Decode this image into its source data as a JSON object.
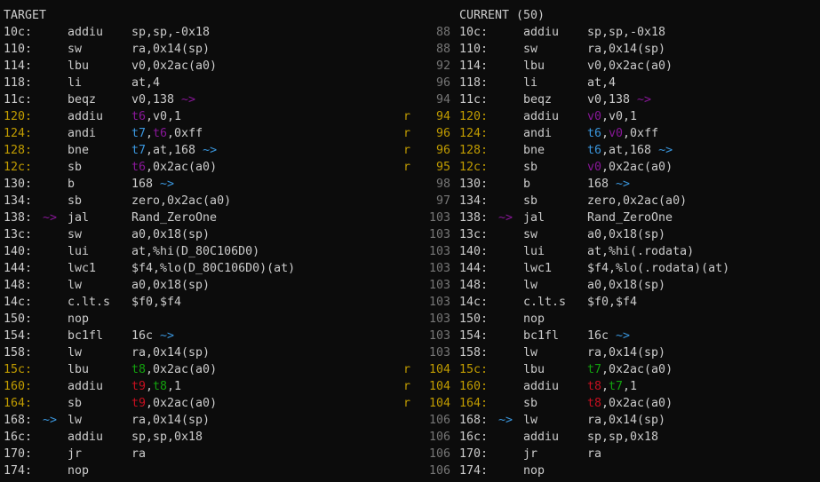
{
  "colors": {
    "d": "#cccccc",
    "y": "#c19c00",
    "p": "#881798",
    "b": "#3a96dd",
    "g": "#13a10e",
    "r": "#c50f1f",
    "n": "#767676",
    "bg": "#0c0c0c"
  },
  "header": {
    "left": "TARGET",
    "right": "CURRENT (50)"
  },
  "rows": [
    {
      "la": "10c:",
      "lac": "d",
      "lar": null,
      "lm": "addiu",
      "lx": [
        [
          "sp,sp,-0x18",
          "d"
        ]
      ],
      "mk": "",
      "rn": "88",
      "ra": "10c:",
      "rac": "d",
      "rar": null,
      "rm": "addiu",
      "rx": [
        [
          "sp,sp,-0x18",
          "d"
        ]
      ]
    },
    {
      "la": "110:",
      "lac": "d",
      "lar": null,
      "lm": "sw",
      "lx": [
        [
          "ra,0x14(sp)",
          "d"
        ]
      ],
      "mk": "",
      "rn": "88",
      "ra": "110:",
      "rac": "d",
      "rar": null,
      "rm": "sw",
      "rx": [
        [
          "ra,0x14(sp)",
          "d"
        ]
      ]
    },
    {
      "la": "114:",
      "lac": "d",
      "lar": null,
      "lm": "lbu",
      "lx": [
        [
          "v0,0x2ac(a0)",
          "d"
        ]
      ],
      "mk": "",
      "rn": "92",
      "ra": "114:",
      "rac": "d",
      "rar": null,
      "rm": "lbu",
      "rx": [
        [
          "v0,0x2ac(a0)",
          "d"
        ]
      ]
    },
    {
      "la": "118:",
      "lac": "d",
      "lar": null,
      "lm": "li",
      "lx": [
        [
          "at,4",
          "d"
        ]
      ],
      "mk": "",
      "rn": "96",
      "ra": "118:",
      "rac": "d",
      "rar": null,
      "rm": "li",
      "rx": [
        [
          "at,4",
          "d"
        ]
      ]
    },
    {
      "la": "11c:",
      "lac": "d",
      "lar": null,
      "lm": "beqz",
      "lx": [
        [
          "v0,138 ",
          "d"
        ],
        [
          "~>",
          "p"
        ]
      ],
      "mk": "",
      "rn": "94",
      "ra": "11c:",
      "rac": "d",
      "rar": null,
      "rm": "beqz",
      "rx": [
        [
          "v0,138 ",
          "d"
        ],
        [
          "~>",
          "p"
        ]
      ]
    },
    {
      "la": "120:",
      "lac": "y",
      "lar": null,
      "lm": "addiu",
      "lx": [
        [
          "t6",
          "p"
        ],
        [
          ",v0,1",
          "d"
        ]
      ],
      "mk": "r",
      "rn": "94",
      "ra": "120:",
      "rac": "y",
      "rar": null,
      "rm": "addiu",
      "rx": [
        [
          "v0",
          "p"
        ],
        [
          ",v0,1",
          "d"
        ]
      ]
    },
    {
      "la": "124:",
      "lac": "y",
      "lar": null,
      "lm": "andi",
      "lx": [
        [
          "t7",
          "b"
        ],
        [
          ",",
          "d"
        ],
        [
          "t6",
          "p"
        ],
        [
          ",0xff",
          "d"
        ]
      ],
      "mk": "r",
      "rn": "96",
      "ra": "124:",
      "rac": "y",
      "rar": null,
      "rm": "andi",
      "rx": [
        [
          "t6",
          "b"
        ],
        [
          ",",
          "d"
        ],
        [
          "v0",
          "p"
        ],
        [
          ",0xff",
          "d"
        ]
      ]
    },
    {
      "la": "128:",
      "lac": "y",
      "lar": null,
      "lm": "bne",
      "lx": [
        [
          "t7",
          "b"
        ],
        [
          ",at,168 ",
          "d"
        ],
        [
          "~>",
          "b"
        ]
      ],
      "mk": "r",
      "rn": "96",
      "ra": "128:",
      "rac": "y",
      "rar": null,
      "rm": "bne",
      "rx": [
        [
          "t6",
          "b"
        ],
        [
          ",at,168 ",
          "d"
        ],
        [
          "~>",
          "b"
        ]
      ]
    },
    {
      "la": "12c:",
      "lac": "y",
      "lar": null,
      "lm": "sb",
      "lx": [
        [
          "t6",
          "p"
        ],
        [
          ",0x2ac(a0)",
          "d"
        ]
      ],
      "mk": "r",
      "rn": "95",
      "ra": "12c:",
      "rac": "y",
      "rar": null,
      "rm": "sb",
      "rx": [
        [
          "v0",
          "p"
        ],
        [
          ",0x2ac(a0)",
          "d"
        ]
      ]
    },
    {
      "la": "130:",
      "lac": "d",
      "lar": null,
      "lm": "b",
      "lx": [
        [
          "168 ",
          "d"
        ],
        [
          "~>",
          "b"
        ]
      ],
      "mk": "",
      "rn": "98",
      "ra": "130:",
      "rac": "d",
      "rar": null,
      "rm": "b",
      "rx": [
        [
          "168 ",
          "d"
        ],
        [
          "~>",
          "b"
        ]
      ]
    },
    {
      "la": "134:",
      "lac": "d",
      "lar": null,
      "lm": "sb",
      "lx": [
        [
          "zero,0x2ac(a0)",
          "d"
        ]
      ],
      "mk": "",
      "rn": "97",
      "ra": "134:",
      "rac": "d",
      "rar": null,
      "rm": "sb",
      "rx": [
        [
          "zero,0x2ac(a0)",
          "d"
        ]
      ]
    },
    {
      "la": "138:",
      "lac": "d",
      "lar": [
        "~>",
        "p"
      ],
      "lm": "jal",
      "lx": [
        [
          "Rand_ZeroOne",
          "d"
        ]
      ],
      "mk": "",
      "rn": "103",
      "ra": "138:",
      "rac": "d",
      "rar": [
        "~>",
        "p"
      ],
      "rm": "jal",
      "rx": [
        [
          "Rand_ZeroOne",
          "d"
        ]
      ]
    },
    {
      "la": "13c:",
      "lac": "d",
      "lar": null,
      "lm": "sw",
      "lx": [
        [
          "a0,0x18(sp)",
          "d"
        ]
      ],
      "mk": "",
      "rn": "103",
      "ra": "13c:",
      "rac": "d",
      "rar": null,
      "rm": "sw",
      "rx": [
        [
          "a0,0x18(sp)",
          "d"
        ]
      ]
    },
    {
      "la": "140:",
      "lac": "d",
      "lar": null,
      "lm": "lui",
      "lx": [
        [
          "at,%hi(D_80C106D0)",
          "d"
        ]
      ],
      "mk": "",
      "rn": "103",
      "ra": "140:",
      "rac": "d",
      "rar": null,
      "rm": "lui",
      "rx": [
        [
          "at,%hi(.rodata)",
          "d"
        ]
      ]
    },
    {
      "la": "144:",
      "lac": "d",
      "lar": null,
      "lm": "lwc1",
      "lx": [
        [
          "$f4,%lo(D_80C106D0)(at)",
          "d"
        ]
      ],
      "mk": "",
      "rn": "103",
      "ra": "144:",
      "rac": "d",
      "rar": null,
      "rm": "lwc1",
      "rx": [
        [
          "$f4,%lo(.rodata)(at)",
          "d"
        ]
      ]
    },
    {
      "la": "148:",
      "lac": "d",
      "lar": null,
      "lm": "lw",
      "lx": [
        [
          "a0,0x18(sp)",
          "d"
        ]
      ],
      "mk": "",
      "rn": "103",
      "ra": "148:",
      "rac": "d",
      "rar": null,
      "rm": "lw",
      "rx": [
        [
          "a0,0x18(sp)",
          "d"
        ]
      ]
    },
    {
      "la": "14c:",
      "lac": "d",
      "lar": null,
      "lm": "c.lt.s",
      "lx": [
        [
          "$f0,$f4",
          "d"
        ]
      ],
      "mk": "",
      "rn": "103",
      "ra": "14c:",
      "rac": "d",
      "rar": null,
      "rm": "c.lt.s",
      "rx": [
        [
          "$f0,$f4",
          "d"
        ]
      ]
    },
    {
      "la": "150:",
      "lac": "d",
      "lar": null,
      "lm": "nop",
      "lx": [],
      "mk": "",
      "rn": "103",
      "ra": "150:",
      "rac": "d",
      "rar": null,
      "rm": "nop",
      "rx": []
    },
    {
      "la": "154:",
      "lac": "d",
      "lar": null,
      "lm": "bc1fl",
      "lx": [
        [
          "16c ",
          "d"
        ],
        [
          "~>",
          "b"
        ]
      ],
      "mk": "",
      "rn": "103",
      "ra": "154:",
      "rac": "d",
      "rar": null,
      "rm": "bc1fl",
      "rx": [
        [
          "16c ",
          "d"
        ],
        [
          "~>",
          "b"
        ]
      ]
    },
    {
      "la": "158:",
      "lac": "d",
      "lar": null,
      "lm": "lw",
      "lx": [
        [
          "ra,0x14(sp)",
          "d"
        ]
      ],
      "mk": "",
      "rn": "103",
      "ra": "158:",
      "rac": "d",
      "rar": null,
      "rm": "lw",
      "rx": [
        [
          "ra,0x14(sp)",
          "d"
        ]
      ]
    },
    {
      "la": "15c:",
      "lac": "y",
      "lar": null,
      "lm": "lbu",
      "lx": [
        [
          "t8",
          "g"
        ],
        [
          ",0x2ac(a0)",
          "d"
        ]
      ],
      "mk": "r",
      "rn": "104",
      "ra": "15c:",
      "rac": "y",
      "rar": null,
      "rm": "lbu",
      "rx": [
        [
          "t7",
          "g"
        ],
        [
          ",0x2ac(a0)",
          "d"
        ]
      ]
    },
    {
      "la": "160:",
      "lac": "y",
      "lar": null,
      "lm": "addiu",
      "lx": [
        [
          "t9",
          "r"
        ],
        [
          ",",
          "d"
        ],
        [
          "t8",
          "g"
        ],
        [
          ",1",
          "d"
        ]
      ],
      "mk": "r",
      "rn": "104",
      "ra": "160:",
      "rac": "y",
      "rar": null,
      "rm": "addiu",
      "rx": [
        [
          "t8",
          "r"
        ],
        [
          ",",
          "d"
        ],
        [
          "t7",
          "g"
        ],
        [
          ",1",
          "d"
        ]
      ]
    },
    {
      "la": "164:",
      "lac": "y",
      "lar": null,
      "lm": "sb",
      "lx": [
        [
          "t9",
          "r"
        ],
        [
          ",0x2ac(a0)",
          "d"
        ]
      ],
      "mk": "r",
      "rn": "104",
      "ra": "164:",
      "rac": "y",
      "rar": null,
      "rm": "sb",
      "rx": [
        [
          "t8",
          "r"
        ],
        [
          ",0x2ac(a0)",
          "d"
        ]
      ]
    },
    {
      "la": "168:",
      "lac": "d",
      "lar": [
        "~>",
        "b"
      ],
      "lm": "lw",
      "lx": [
        [
          "ra,0x14(sp)",
          "d"
        ]
      ],
      "mk": "",
      "rn": "106",
      "ra": "168:",
      "rac": "d",
      "rar": [
        "~>",
        "b"
      ],
      "rm": "lw",
      "rx": [
        [
          "ra,0x14(sp)",
          "d"
        ]
      ]
    },
    {
      "la": "16c:",
      "lac": "d",
      "lar": null,
      "lm": "addiu",
      "lx": [
        [
          "sp,sp,0x18",
          "d"
        ]
      ],
      "mk": "",
      "rn": "106",
      "ra": "16c:",
      "rac": "d",
      "rar": null,
      "rm": "addiu",
      "rx": [
        [
          "sp,sp,0x18",
          "d"
        ]
      ]
    },
    {
      "la": "170:",
      "lac": "d",
      "lar": null,
      "lm": "jr",
      "lx": [
        [
          "ra",
          "d"
        ]
      ],
      "mk": "",
      "rn": "106",
      "ra": "170:",
      "rac": "d",
      "rar": null,
      "rm": "jr",
      "rx": [
        [
          "ra",
          "d"
        ]
      ]
    },
    {
      "la": "174:",
      "lac": "d",
      "lar": null,
      "lm": "nop",
      "lx": [],
      "mk": "",
      "rn": "106",
      "ra": "174:",
      "rac": "d",
      "rar": null,
      "rm": "nop",
      "rx": []
    }
  ]
}
